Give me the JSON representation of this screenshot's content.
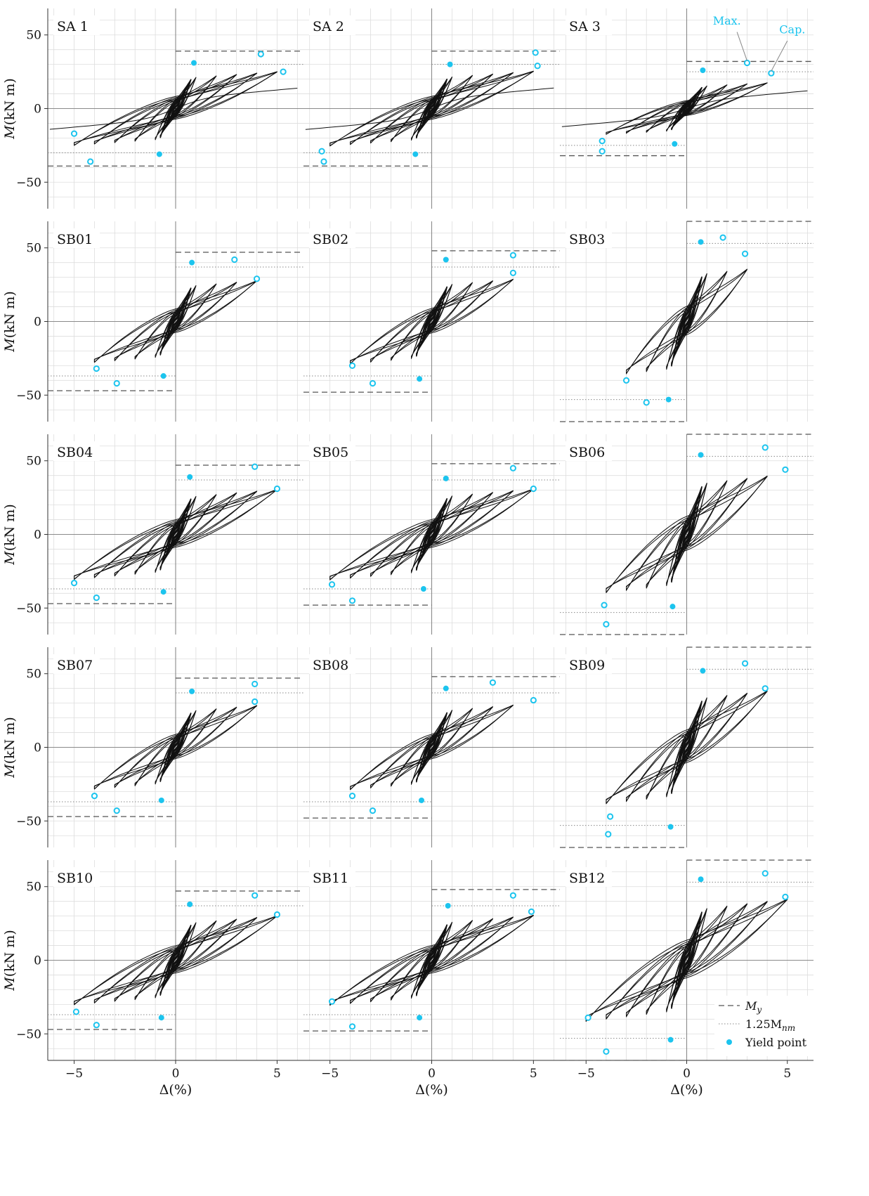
{
  "figure": {
    "ylabel": "M(kN m)",
    "xlabel": "Δ(%)",
    "colors": {
      "curve": "#111111",
      "marker": "#1cc4ee",
      "grid": "#dddddd",
      "axis": "#8a8a8a",
      "My_line": "#555555",
      "Mnm_line": "#888888",
      "annotation": "#1cc4ee"
    },
    "annotations": {
      "max": "Max.",
      "cap": "Cap."
    },
    "legend": {
      "placement": "bottom-right of SB12 panel",
      "My": "M",
      "My_sub": "y",
      "Mnm_prefix": "1.25M",
      "Mnm_sub": "nm",
      "yield": "Yield point"
    }
  },
  "chart_data": [
    {
      "type": "line",
      "title": "SA 1",
      "xlim": [
        -6.3,
        6.3
      ],
      "ylim": [
        -68,
        68
      ],
      "xticks": [
        -5,
        0,
        5
      ],
      "yticks": [
        -50,
        0,
        50
      ],
      "grid": true,
      "My": 39,
      "Mnm125": 30,
      "yield": [
        [
          0.9,
          31
        ],
        [
          -0.8,
          -31
        ]
      ],
      "max": [
        [
          4.2,
          37
        ],
        [
          -4.2,
          -36
        ]
      ],
      "cap": [
        [
          5.3,
          25
        ],
        [
          -5.0,
          -17
        ]
      ],
      "cycles": [
        1,
        2,
        3,
        4,
        5
      ],
      "tail": true
    },
    {
      "type": "line",
      "title": "SA 2",
      "xlim": [
        -6.3,
        6.3
      ],
      "ylim": [
        -68,
        68
      ],
      "xticks": [
        -5,
        0,
        5
      ],
      "yticks": [
        -50,
        0,
        50
      ],
      "grid": true,
      "My": 39,
      "Mnm125": 30,
      "yield": [
        [
          0.9,
          30
        ],
        [
          -0.8,
          -31
        ]
      ],
      "max": [
        [
          5.1,
          38
        ],
        [
          -5.3,
          -36
        ]
      ],
      "cap": [
        [
          5.2,
          29
        ],
        [
          -5.4,
          -29
        ]
      ],
      "cycles": [
        1,
        2,
        3,
        4,
        5
      ],
      "tail": true
    },
    {
      "type": "line",
      "title": "SA 3",
      "xlim": [
        -6.3,
        6.3
      ],
      "ylim": [
        -68,
        68
      ],
      "xticks": [
        -5,
        0,
        5
      ],
      "yticks": [
        -50,
        0,
        50
      ],
      "grid": true,
      "My": 32,
      "Mnm125": 25,
      "yield": [
        [
          0.8,
          26
        ],
        [
          -0.6,
          -24
        ]
      ],
      "max": [
        [
          3.0,
          31
        ],
        [
          -4.2,
          -22
        ]
      ],
      "cap": [
        [
          4.2,
          24
        ],
        [
          -4.2,
          -29
        ]
      ],
      "cycles": [
        1,
        2,
        3,
        4
      ],
      "tail": true
    },
    {
      "type": "line",
      "title": "SB01",
      "xlim": [
        -6.3,
        6.3
      ],
      "ylim": [
        -68,
        68
      ],
      "xticks": [
        -5,
        0,
        5
      ],
      "yticks": [
        -50,
        0,
        50
      ],
      "grid": true,
      "My": 47,
      "Mnm125": 37,
      "yield": [
        [
          0.8,
          40
        ],
        [
          -0.6,
          -37
        ]
      ],
      "max": [
        [
          2.9,
          42
        ],
        [
          -2.9,
          -42
        ]
      ],
      "cap": [
        [
          4.0,
          29
        ],
        [
          -3.9,
          -32
        ]
      ],
      "cycles": [
        1,
        2,
        3,
        4
      ],
      "tail": false
    },
    {
      "type": "line",
      "title": "SB02",
      "xlim": [
        -6.3,
        6.3
      ],
      "ylim": [
        -68,
        68
      ],
      "xticks": [
        -5,
        0,
        5
      ],
      "yticks": [
        -50,
        0,
        50
      ],
      "grid": true,
      "My": 48,
      "Mnm125": 37,
      "yield": [
        [
          0.7,
          42
        ],
        [
          -0.6,
          -39
        ]
      ],
      "max": [
        [
          4.0,
          45
        ],
        [
          -2.9,
          -42
        ]
      ],
      "cap": [
        [
          4.0,
          33
        ],
        [
          -3.9,
          -30
        ]
      ],
      "cycles": [
        1,
        2,
        3,
        4
      ],
      "tail": false
    },
    {
      "type": "line",
      "title": "SB03",
      "xlim": [
        -6.3,
        6.3
      ],
      "ylim": [
        -68,
        68
      ],
      "xticks": [
        -5,
        0,
        5
      ],
      "yticks": [
        -50,
        0,
        50
      ],
      "grid": true,
      "My": 68,
      "Mnm125": 53,
      "yield": [
        [
          0.7,
          54
        ],
        [
          -0.9,
          -53
        ]
      ],
      "max": [
        [
          1.8,
          57
        ],
        [
          -2.0,
          -55
        ]
      ],
      "cap": [
        [
          2.9,
          46
        ],
        [
          -3.0,
          -40
        ]
      ],
      "cycles": [
        1,
        2,
        3
      ],
      "tail": false
    },
    {
      "type": "line",
      "title": "SB04",
      "xlim": [
        -6.3,
        6.3
      ],
      "ylim": [
        -68,
        68
      ],
      "xticks": [
        -5,
        0,
        5
      ],
      "yticks": [
        -50,
        0,
        50
      ],
      "grid": true,
      "My": 47,
      "Mnm125": 37,
      "yield": [
        [
          0.7,
          39
        ],
        [
          -0.6,
          -39
        ]
      ],
      "max": [
        [
          3.9,
          46
        ],
        [
          -3.9,
          -43
        ]
      ],
      "cap": [
        [
          5.0,
          31
        ],
        [
          -5.0,
          -33
        ]
      ],
      "cycles": [
        1,
        2,
        3,
        4,
        5
      ],
      "tail": false
    },
    {
      "type": "line",
      "title": "SB05",
      "xlim": [
        -6.3,
        6.3
      ],
      "ylim": [
        -68,
        68
      ],
      "xticks": [
        -5,
        0,
        5
      ],
      "yticks": [
        -50,
        0,
        50
      ],
      "grid": true,
      "My": 48,
      "Mnm125": 37,
      "yield": [
        [
          0.7,
          38
        ],
        [
          -0.4,
          -37
        ]
      ],
      "max": [
        [
          4.0,
          45
        ],
        [
          -3.9,
          -45
        ]
      ],
      "cap": [
        [
          5.0,
          31
        ],
        [
          -4.9,
          -34
        ]
      ],
      "cycles": [
        1,
        2,
        3,
        4,
        5
      ],
      "tail": false
    },
    {
      "type": "line",
      "title": "SB06",
      "xlim": [
        -6.3,
        6.3
      ],
      "ylim": [
        -68,
        68
      ],
      "xticks": [
        -5,
        0,
        5
      ],
      "yticks": [
        -50,
        0,
        50
      ],
      "grid": true,
      "My": 68,
      "Mnm125": 53,
      "yield": [
        [
          0.7,
          54
        ],
        [
          -0.7,
          -49
        ]
      ],
      "max": [
        [
          3.9,
          59
        ],
        [
          -4.0,
          -61
        ]
      ],
      "cap": [
        [
          4.9,
          44
        ],
        [
          -4.1,
          -48
        ]
      ],
      "cycles": [
        1,
        2,
        3,
        4
      ],
      "tail": false
    },
    {
      "type": "line",
      "title": "SB07",
      "xlim": [
        -6.3,
        6.3
      ],
      "ylim": [
        -68,
        68
      ],
      "xticks": [
        -5,
        0,
        5
      ],
      "yticks": [
        -50,
        0,
        50
      ],
      "grid": true,
      "My": 47,
      "Mnm125": 37,
      "yield": [
        [
          0.8,
          38
        ],
        [
          -0.7,
          -36
        ]
      ],
      "max": [
        [
          3.9,
          43
        ],
        [
          -2.9,
          -43
        ]
      ],
      "cap": [
        [
          3.9,
          31
        ],
        [
          -4.0,
          -33
        ]
      ],
      "cycles": [
        1,
        2,
        3,
        4
      ],
      "tail": false
    },
    {
      "type": "line",
      "title": "SB08",
      "xlim": [
        -6.3,
        6.3
      ],
      "ylim": [
        -68,
        68
      ],
      "xticks": [
        -5,
        0,
        5
      ],
      "yticks": [
        -50,
        0,
        50
      ],
      "grid": true,
      "My": 48,
      "Mnm125": 37,
      "yield": [
        [
          0.7,
          40
        ],
        [
          -0.5,
          -36
        ]
      ],
      "max": [
        [
          3.0,
          44
        ],
        [
          -2.9,
          -43
        ]
      ],
      "cap": [
        [
          5.0,
          32
        ],
        [
          -3.9,
          -33
        ]
      ],
      "cycles": [
        1,
        2,
        3,
        4
      ],
      "tail": false
    },
    {
      "type": "line",
      "title": "SB09",
      "xlim": [
        -6.3,
        6.3
      ],
      "ylim": [
        -68,
        68
      ],
      "xticks": [
        -5,
        0,
        5
      ],
      "yticks": [
        -50,
        0,
        50
      ],
      "grid": true,
      "My": 68,
      "Mnm125": 53,
      "yield": [
        [
          0.8,
          52
        ],
        [
          -0.8,
          -54
        ]
      ],
      "max": [
        [
          2.9,
          57
        ],
        [
          -3.9,
          -59
        ]
      ],
      "cap": [
        [
          3.9,
          40
        ],
        [
          -3.8,
          -47
        ]
      ],
      "cycles": [
        1,
        2,
        3,
        4
      ],
      "tail": false
    },
    {
      "type": "line",
      "title": "SB10",
      "xlim": [
        -6.3,
        6.3
      ],
      "ylim": [
        -68,
        68
      ],
      "xticks": [
        -5,
        0,
        5
      ],
      "yticks": [
        -50,
        0,
        50
      ],
      "grid": true,
      "My": 47,
      "Mnm125": 37,
      "yield": [
        [
          0.7,
          38
        ],
        [
          -0.7,
          -39
        ]
      ],
      "max": [
        [
          3.9,
          44
        ],
        [
          -3.9,
          -44
        ]
      ],
      "cap": [
        [
          5.0,
          31
        ],
        [
          -4.9,
          -35
        ]
      ],
      "cycles": [
        1,
        2,
        3,
        4,
        5
      ],
      "tail": false
    },
    {
      "type": "line",
      "title": "SB11",
      "xlim": [
        -6.3,
        6.3
      ],
      "ylim": [
        -68,
        68
      ],
      "xticks": [
        -5,
        0,
        5
      ],
      "yticks": [
        -50,
        0,
        50
      ],
      "grid": true,
      "My": 48,
      "Mnm125": 37,
      "yield": [
        [
          0.8,
          37
        ],
        [
          -0.6,
          -39
        ]
      ],
      "max": [
        [
          4.0,
          44
        ],
        [
          -3.9,
          -45
        ]
      ],
      "cap": [
        [
          4.9,
          33
        ],
        [
          -4.9,
          -28
        ]
      ],
      "cycles": [
        1,
        2,
        3,
        4,
        5
      ],
      "tail": false
    },
    {
      "type": "line",
      "title": "SB12",
      "xlim": [
        -6.3,
        6.3
      ],
      "ylim": [
        -68,
        68
      ],
      "xticks": [
        -5,
        0,
        5
      ],
      "yticks": [
        -50,
        0,
        50
      ],
      "grid": true,
      "My": 68,
      "Mnm125": 53,
      "yield": [
        [
          0.7,
          55
        ],
        [
          -0.8,
          -54
        ]
      ],
      "max": [
        [
          3.9,
          59
        ],
        [
          -4.0,
          -62
        ]
      ],
      "cap": [
        [
          4.9,
          43
        ],
        [
          -4.9,
          -39
        ]
      ],
      "cycles": [
        1,
        2,
        3,
        4,
        5
      ],
      "tail": false
    }
  ]
}
